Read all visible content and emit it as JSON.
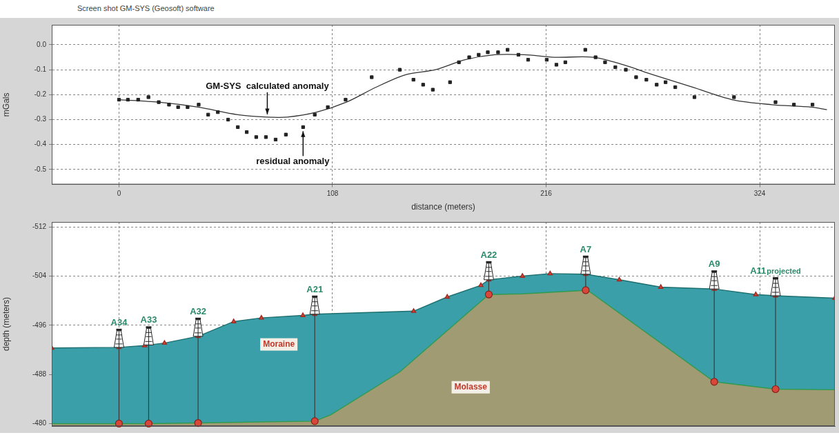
{
  "header": "Screen shot GM-SYS (Geosoft) software",
  "chart_data": [
    {
      "type": "scatter",
      "ylabel": "mGals",
      "xlabel": "distance (meters)",
      "xlim": [
        -34,
        362
      ],
      "xticks": [
        0,
        108,
        216,
        324
      ],
      "ylim": [
        -0.56,
        0.08
      ],
      "yticks": [
        {
          "value": 0,
          "label": "0.0"
        },
        -0.1,
        -0.2,
        -0.3,
        -0.4,
        -0.5
      ],
      "grid": true,
      "series": [
        {
          "name": "residual anomaly",
          "type": "scatter",
          "marker": "square",
          "color": "#222222",
          "x": [
            0,
            4.5,
            9.7,
            14.9,
            20.1,
            25.3,
            29.9,
            34.7,
            40.3,
            45.1,
            50,
            55.2,
            60.1,
            64.6,
            69.4,
            74.3,
            79.2,
            84.4,
            93.1,
            99,
            105.6,
            114.6,
            127.8,
            142,
            148.9,
            153.8,
            158.7,
            167.4,
            171.9,
            177.1,
            181.9,
            186.5,
            191.7,
            196.5,
            202,
            206.9,
            216.3,
            221.2,
            225.7,
            235.8,
            241,
            245.8,
            251,
            256.3,
            261.5,
            266.7,
            271.9,
            276.4,
            281.3,
            291,
            311,
            332,
            341.3,
            350.7
          ],
          "values": [
            -0.22,
            -0.22,
            -0.22,
            -0.21,
            -0.23,
            -0.24,
            -0.25,
            -0.25,
            -0.24,
            -0.28,
            -0.27,
            -0.3,
            -0.33,
            -0.35,
            -0.37,
            -0.37,
            -0.38,
            -0.36,
            -0.33,
            -0.28,
            -0.25,
            -0.22,
            -0.13,
            -0.1,
            -0.14,
            -0.16,
            -0.18,
            -0.15,
            -0.07,
            -0.05,
            -0.04,
            -0.03,
            -0.03,
            -0.02,
            -0.04,
            -0.06,
            -0.06,
            -0.08,
            -0.07,
            -0.02,
            -0.05,
            -0.07,
            -0.09,
            -0.1,
            -0.13,
            -0.14,
            -0.16,
            -0.15,
            -0.17,
            -0.21,
            -0.21,
            -0.23,
            -0.24,
            -0.24
          ]
        },
        {
          "name": "GM-SYS  calculated anomaly",
          "type": "line",
          "line_style": "solid",
          "color": "#333333",
          "x": [
            0,
            20,
            40,
            60,
            75,
            85,
            100,
            115,
            130,
            145,
            160,
            175,
            190,
            205,
            220,
            240,
            255,
            270,
            290,
            310,
            330,
            350,
            358
          ],
          "values": [
            -0.22,
            -0.23,
            -0.25,
            -0.28,
            -0.29,
            -0.29,
            -0.27,
            -0.23,
            -0.17,
            -0.12,
            -0.1,
            -0.06,
            -0.04,
            -0.04,
            -0.05,
            -0.05,
            -0.08,
            -0.12,
            -0.17,
            -0.22,
            -0.24,
            -0.25,
            -0.26
          ]
        }
      ]
    },
    {
      "type": "area",
      "ylabel": "depth (meters)",
      "xlim": [
        -34,
        362
      ],
      "xticks": [
        0,
        108,
        216,
        324
      ],
      "ylim": [
        -512.8,
        -479.6
      ],
      "yticks": [
        -512,
        -504,
        -496,
        -488,
        -480
      ],
      "grid": true,
      "tick_labels": "y",
      "series": [
        {
          "name": "Moraine",
          "color": "#3a9fa8",
          "marker": "triangle",
          "x": [
            -34,
            0,
            13,
            23,
            40,
            58,
            72,
            93,
            99,
            149,
            166,
            183,
            187,
            204,
            218,
            236,
            253,
            274,
            301,
            322,
            332,
            362
          ],
          "values": [
            -492.3,
            -492.4,
            -492.7,
            -493.1,
            -494.2,
            -496.6,
            -497.2,
            -497.6,
            -497.8,
            -498.3,
            -500.6,
            -502.5,
            -503.4,
            -504.0,
            -504.4,
            -504.3,
            -503.4,
            -502.2,
            -501.9,
            -501.0,
            -500.8,
            -500.4
          ]
        },
        {
          "name": "Molasse",
          "color": "#a09b72",
          "x": [
            -34,
            0,
            15,
            40,
            99,
            107,
            142,
            187,
            204,
            237,
            301,
            332,
            362
          ],
          "values": [
            -480.0,
            -480.0,
            -480.0,
            -480.1,
            -480.4,
            -481.4,
            -488.4,
            -501.0,
            -501.1,
            -501.7,
            -486.8,
            -485.6,
            -485.5
          ]
        }
      ],
      "wells": [
        {
          "name": "A34",
          "x": 0,
          "top": -492.4,
          "bottom": -480.0
        },
        {
          "name": "A33",
          "x": 15,
          "top": -492.8,
          "bottom": -480.0
        },
        {
          "name": "A32",
          "x": 40,
          "top": -494.2,
          "bottom": -480.1
        },
        {
          "name": "A21",
          "x": 99,
          "top": -497.8,
          "bottom": -480.4
        },
        {
          "name": "A22",
          "x": 187,
          "top": -503.4,
          "bottom": -501.0
        },
        {
          "name": "A7",
          "x": 236,
          "top": -504.3,
          "bottom": -501.7
        },
        {
          "name": "A9",
          "x": 301,
          "top": -501.9,
          "bottom": -486.8
        },
        {
          "name": "A11",
          "note": "projected",
          "x": 332,
          "top": -500.8,
          "bottom": -485.6
        }
      ]
    }
  ]
}
